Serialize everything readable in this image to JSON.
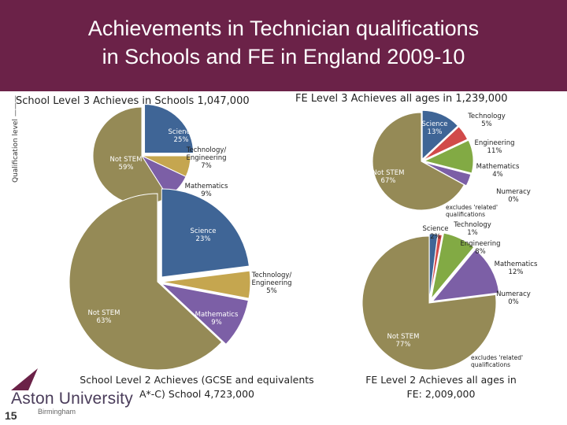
{
  "title_line1": "Achievements in Technician qualifications",
  "title_line2": "in Schools and FE in England 2009-10",
  "side_label": "Qualification level",
  "logo": {
    "name": "Aston University",
    "sub": "Birmingham"
  },
  "page_number": "15",
  "colors": {
    "header": "#6b2248",
    "science": "#3f6596",
    "technology": "#c5a64f",
    "mathematics": "#7c5fa6",
    "not_stem": "#958a56",
    "engineering": "#82aa44",
    "numeracy": "#3e305e",
    "technology_fe": "#d14a4a"
  },
  "chart_data": [
    {
      "type": "pie",
      "heading": "School Level 3 Achieves in Schools 1,047,000",
      "slices": [
        {
          "name": "Science",
          "value": 25
        },
        {
          "name": "Technology/ Engineering",
          "value": 7
        },
        {
          "name": "Mathematics",
          "value": 9
        },
        {
          "name": "Not STEM",
          "value": 59
        }
      ],
      "labels": [
        [
          "Science",
          "25%"
        ],
        [
          "Technology/",
          "Engineering",
          "7%"
        ],
        [
          "Mathematics",
          "9%"
        ],
        [
          "Not STEM",
          "59%"
        ]
      ]
    },
    {
      "type": "pie",
      "heading": "FE Level 3 Achieves all ages in 1,239,000",
      "slices": [
        {
          "name": "Science",
          "value": 13
        },
        {
          "name": "Technology",
          "value": 5
        },
        {
          "name": "Engineering",
          "value": 11
        },
        {
          "name": "Mathematics",
          "value": 4
        },
        {
          "name": "Numeracy",
          "value": 0
        },
        {
          "name": "Not STEM",
          "value": 67
        }
      ],
      "labels": [
        [
          "Science",
          "13%"
        ],
        [
          "Technology",
          "5%"
        ],
        [
          "Engineering",
          "11%"
        ],
        [
          "Mathematics",
          "4%"
        ],
        [
          "Numeracy",
          "0%"
        ],
        [
          "Not STEM",
          "67%"
        ]
      ],
      "note": [
        "excludes 'related'",
        "qualifications"
      ]
    },
    {
      "type": "pie",
      "caption": [
        "School Level 2 Achieves (GCSE and equivalents",
        "A*-C) School  4,723,000"
      ],
      "slices": [
        {
          "name": "Science",
          "value": 23
        },
        {
          "name": "Technology/ Engineering",
          "value": 5
        },
        {
          "name": "Mathematics",
          "value": 9
        },
        {
          "name": "Not STEM",
          "value": 63
        }
      ],
      "labels": [
        [
          "Science",
          "23%"
        ],
        [
          "Technology/",
          "Engineering",
          "5%"
        ],
        [
          "Mathematics",
          "9%"
        ],
        [
          "Not STEM",
          "63%"
        ]
      ]
    },
    {
      "type": "pie",
      "caption": [
        "FE Level 2 Achieves all ages in",
        "FE:   2,009,000"
      ],
      "slices": [
        {
          "name": "Science",
          "value": 2
        },
        {
          "name": "Technology",
          "value": 1
        },
        {
          "name": "Engineering",
          "value": 8
        },
        {
          "name": "Mathematics",
          "value": 12
        },
        {
          "name": "Numeracy",
          "value": 0
        },
        {
          "name": "Not STEM",
          "value": 77
        }
      ],
      "labels": [
        [
          "Science",
          "2%"
        ],
        [
          "Technology",
          "1%"
        ],
        [
          "Engineering",
          "8%"
        ],
        [
          "Mathematics",
          "12%"
        ],
        [
          "Numeracy",
          "0%"
        ],
        [
          "Not STEM",
          "77%"
        ]
      ],
      "note": [
        "excludes 'related'",
        "qualifications"
      ]
    }
  ]
}
